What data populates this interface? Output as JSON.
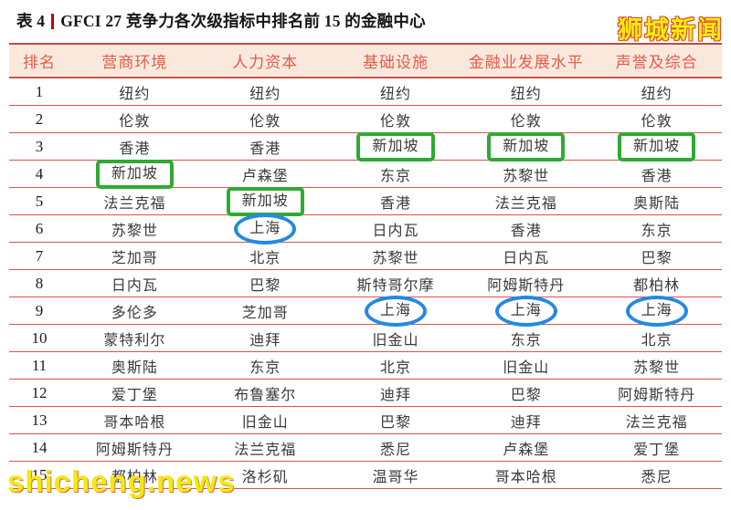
{
  "page": {
    "title_prefix": "表 4",
    "title_text": "GFCI 27 竞争力各次级指标中排名前 15 的金融中心",
    "watermark_top_right": "狮城新闻",
    "watermark_bottom_left": "shicheng.news"
  },
  "colors": {
    "header_bg": "#fbe8dc",
    "header_text": "#e25c4a",
    "row_line_red": "#d9544c",
    "title_bar_red": "#c00000",
    "green_highlight": "#2faa34",
    "blue_highlight": "#2389e0",
    "watermark_yellow": "#f6ed0c"
  },
  "table": {
    "columns": [
      "排名",
      "营商环境",
      "人力资本",
      "基础设施",
      "金融业发展水平",
      "声誉及综合"
    ],
    "highlight_legend": {
      "green-box": "新加坡 (Singapore) highlighted with green rectangle",
      "blue-circle": "上海 (Shanghai) highlighted with blue ellipse"
    },
    "rows": [
      {
        "rank": "1",
        "cells": [
          {
            "text": "纽约"
          },
          {
            "text": "纽约"
          },
          {
            "text": "纽约"
          },
          {
            "text": "纽约"
          },
          {
            "text": "纽约"
          }
        ]
      },
      {
        "rank": "2",
        "cells": [
          {
            "text": "伦敦"
          },
          {
            "text": "伦敦"
          },
          {
            "text": "伦敦"
          },
          {
            "text": "伦敦"
          },
          {
            "text": "伦敦"
          }
        ]
      },
      {
        "rank": "3",
        "cells": [
          {
            "text": "香港"
          },
          {
            "text": "香港"
          },
          {
            "text": "新加坡",
            "mark": "green-box"
          },
          {
            "text": "新加坡",
            "mark": "green-box"
          },
          {
            "text": "新加坡",
            "mark": "green-box"
          }
        ]
      },
      {
        "rank": "4",
        "cells": [
          {
            "text": "新加坡",
            "mark": "green-box"
          },
          {
            "text": "卢森堡"
          },
          {
            "text": "东京"
          },
          {
            "text": "苏黎世"
          },
          {
            "text": "香港"
          }
        ]
      },
      {
        "rank": "5",
        "cells": [
          {
            "text": "法兰克福"
          },
          {
            "text": "新加坡",
            "mark": "green-box"
          },
          {
            "text": "香港"
          },
          {
            "text": "法兰克福"
          },
          {
            "text": "奥斯陆"
          }
        ]
      },
      {
        "rank": "6",
        "cells": [
          {
            "text": "苏黎世"
          },
          {
            "text": "上海",
            "mark": "blue-circle"
          },
          {
            "text": "日内瓦"
          },
          {
            "text": "香港"
          },
          {
            "text": "东京"
          }
        ]
      },
      {
        "rank": "7",
        "cells": [
          {
            "text": "芝加哥"
          },
          {
            "text": "北京"
          },
          {
            "text": "苏黎世"
          },
          {
            "text": "日内瓦"
          },
          {
            "text": "巴黎"
          }
        ]
      },
      {
        "rank": "8",
        "cells": [
          {
            "text": "日内瓦"
          },
          {
            "text": "巴黎"
          },
          {
            "text": "斯特哥尔摩"
          },
          {
            "text": "阿姆斯特丹"
          },
          {
            "text": "都柏林"
          }
        ]
      },
      {
        "rank": "9",
        "cells": [
          {
            "text": "多伦多"
          },
          {
            "text": "芝加哥"
          },
          {
            "text": "上海",
            "mark": "blue-circle"
          },
          {
            "text": "上海",
            "mark": "blue-circle"
          },
          {
            "text": "上海",
            "mark": "blue-circle"
          }
        ]
      },
      {
        "rank": "10",
        "cells": [
          {
            "text": "蒙特利尔"
          },
          {
            "text": "迪拜"
          },
          {
            "text": "旧金山"
          },
          {
            "text": "东京"
          },
          {
            "text": "北京"
          }
        ]
      },
      {
        "rank": "11",
        "cells": [
          {
            "text": "奥斯陆"
          },
          {
            "text": "东京"
          },
          {
            "text": "北京"
          },
          {
            "text": "旧金山"
          },
          {
            "text": "苏黎世"
          }
        ]
      },
      {
        "rank": "12",
        "cells": [
          {
            "text": "爱丁堡"
          },
          {
            "text": "布鲁塞尔"
          },
          {
            "text": "迪拜"
          },
          {
            "text": "巴黎"
          },
          {
            "text": "阿姆斯特丹"
          }
        ]
      },
      {
        "rank": "13",
        "cells": [
          {
            "text": "哥本哈根"
          },
          {
            "text": "旧金山"
          },
          {
            "text": "巴黎"
          },
          {
            "text": "迪拜"
          },
          {
            "text": "法兰克福"
          }
        ]
      },
      {
        "rank": "14",
        "cells": [
          {
            "text": "阿姆斯特丹"
          },
          {
            "text": "法兰克福"
          },
          {
            "text": "悉尼"
          },
          {
            "text": "卢森堡"
          },
          {
            "text": "爱丁堡"
          }
        ]
      },
      {
        "rank": "15",
        "cells": [
          {
            "text": "都柏林"
          },
          {
            "text": "洛杉矶"
          },
          {
            "text": "温哥华"
          },
          {
            "text": "哥本哈根"
          },
          {
            "text": "悉尼"
          }
        ]
      }
    ]
  }
}
